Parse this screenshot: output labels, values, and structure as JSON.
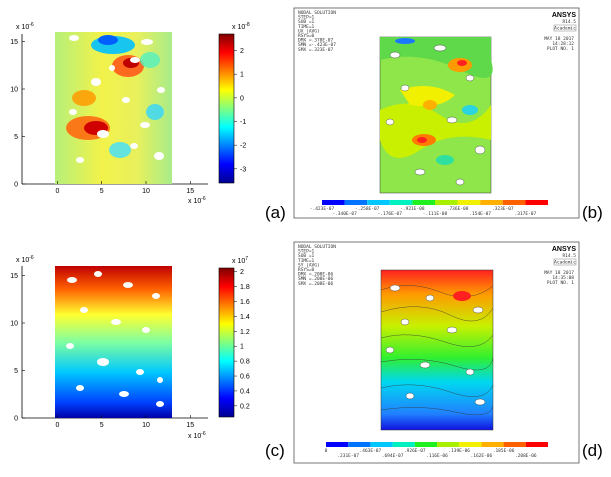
{
  "figure": {
    "labels": {
      "a": "(a)",
      "b": "(b)",
      "c": "(c)",
      "d": "(d)"
    }
  },
  "panel_a": {
    "y_exponent": "x 10",
    "y_exponent_power": "-6",
    "x_exponent": "x 10",
    "x_exponent_power": "-6",
    "cbar_exponent": "x 10",
    "cbar_exponent_power": "-8",
    "colors": {
      "low": "#00008f",
      "mid": "#7fff7f",
      "high": "#800000"
    }
  },
  "panel_c": {
    "y_exponent": "x 10",
    "y_exponent_power": "-6",
    "x_exponent": "x 10",
    "x_exponent_power": "-6",
    "cbar_exponent": "x 10",
    "cbar_exponent_power": "7"
  },
  "panel_b": {
    "brand": "ANSYS",
    "version": "R14.5",
    "academic": "Academic",
    "header_lines": [
      "NODAL SOLUTION",
      "STEP=1",
      "SUB =1",
      "TIME=1",
      "UX     (AVG)",
      "RSYS=0",
      "DMX =.378E-07",
      "SMN =-.423E-07",
      "SMX =.323E-07"
    ],
    "date": "MAY 18 2017",
    "time": "14:28:12",
    "plot_no": "PLOT NO.   1",
    "legend_top": [
      "-.423E-07",
      "-.258E-07",
      "-.921E-08",
      ".736E-08",
      ".323E-07"
    ],
    "legend_bottom": [
      "-.340E-07",
      "-.176E-07",
      "-.111E-08",
      ".154E-07",
      ".317E-07"
    ]
  },
  "panel_d": {
    "brand": "ANSYS",
    "version": "R14.5",
    "academic": "Academic",
    "header_lines": [
      "NODAL SOLUTION",
      "STEP=1",
      "SUB =1",
      "TIME=1",
      "SY     (AVG)",
      "RSYS=0",
      "DMX =.208E-06",
      "SMN =.208E-06",
      "SMX =.208E-06"
    ],
    "date": "MAY 18 2017",
    "time": "14:35:08",
    "plot_no": "PLOT NO.   1",
    "legend_top": [
      "0",
      ".463E-07",
      ".926E-07",
      ".139E-06",
      ".185E-06"
    ],
    "legend_bottom": [
      ".231E-07",
      ".694E-07",
      ".116E-06",
      ".162E-06",
      ".208E-06"
    ]
  },
  "chart_data": [
    {
      "type": "heatmap",
      "id": "a",
      "title": "",
      "xlabel": "",
      "ylabel": "",
      "x_ticks": [
        0,
        5,
        10,
        15
      ],
      "y_ticks": [
        0,
        5,
        10,
        15
      ],
      "x_multiplier": "x 10^-6",
      "y_multiplier": "x 10^-6",
      "xlim": [
        -4,
        17
      ],
      "ylim": [
        0,
        16
      ],
      "colorbar_ticks": [
        2,
        1,
        0,
        -1,
        -2,
        -3
      ],
      "colorbar_range": [
        -3.6,
        2.7
      ],
      "colorbar_multiplier": "x 10^-8",
      "colormap": "jet"
    },
    {
      "type": "heatmap",
      "id": "c",
      "title": "",
      "xlabel": "",
      "ylabel": "",
      "x_ticks": [
        0,
        5,
        10,
        15
      ],
      "y_ticks": [
        0,
        5,
        10,
        15
      ],
      "x_multiplier": "x 10^-6",
      "y_multiplier": "x 10^-6",
      "xlim": [
        -4,
        17
      ],
      "ylim": [
        0,
        16
      ],
      "colorbar_ticks": [
        2,
        1.8,
        1.6,
        1.4,
        1.2,
        1,
        0.8,
        0.6,
        0.4,
        0.2
      ],
      "colorbar_range": [
        0.05,
        2.05
      ],
      "colorbar_multiplier": "x 10^7",
      "colormap": "jet"
    }
  ]
}
